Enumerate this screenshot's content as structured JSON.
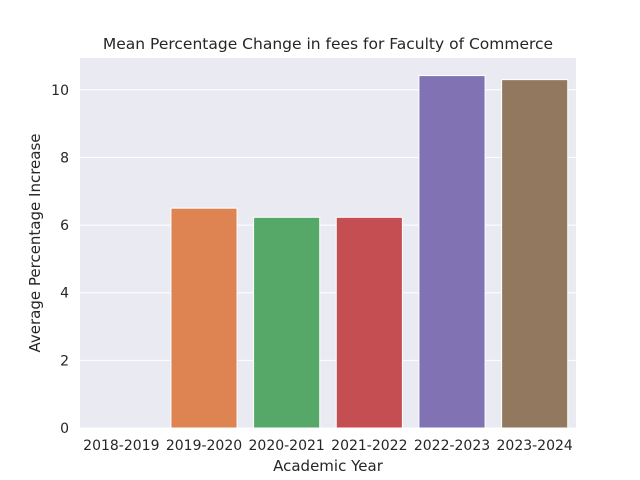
{
  "chart_data": {
    "type": "bar",
    "title": "Mean Percentage Change in fees for Faculty of Commerce",
    "xlabel": "Academic Year",
    "ylabel": "Average Percentage Increase",
    "categories": [
      "2018-2019",
      "2019-2020",
      "2020-2021",
      "2021-2022",
      "2022-2023",
      "2023-2024"
    ],
    "values": [
      0,
      6.5,
      6.23,
      6.23,
      10.42,
      10.3
    ],
    "colors": [
      "#4c72b0",
      "#dd8452",
      "#55a868",
      "#c44e52",
      "#8172b3",
      "#937860"
    ],
    "ylim": [
      0,
      10.94
    ],
    "yticks": [
      0,
      2,
      4,
      6,
      8,
      10
    ],
    "grid": true,
    "background": "#eaeaf2"
  }
}
